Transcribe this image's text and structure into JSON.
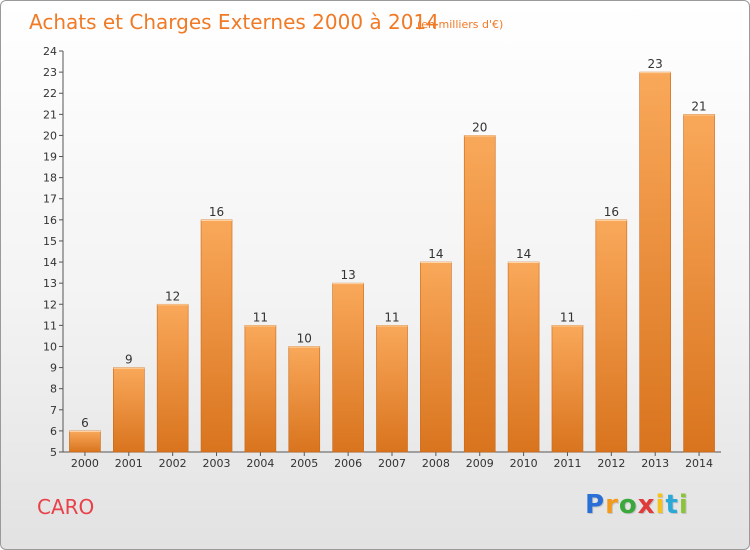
{
  "chart_data": {
    "type": "bar",
    "title": "Achats et Charges Externes 2000 à 2014",
    "subtitle": "(en milliers d'€)",
    "categories": [
      "2000",
      "2001",
      "2002",
      "2003",
      "2004",
      "2005",
      "2006",
      "2007",
      "2008",
      "2009",
      "2010",
      "2011",
      "2012",
      "2013",
      "2014"
    ],
    "values": [
      6,
      9,
      12,
      16,
      11,
      10,
      13,
      11,
      14,
      20,
      14,
      11,
      16,
      23,
      21
    ],
    "ylim": [
      5,
      24
    ],
    "yticks": [
      5,
      6,
      7,
      8,
      9,
      10,
      11,
      12,
      13,
      14,
      15,
      16,
      17,
      18,
      19,
      20,
      21,
      22,
      23,
      24
    ],
    "grid": false,
    "legend": "none",
    "bar_color_top": "#f9a85a",
    "bar_color_bottom": "#d9741e"
  },
  "commune": "CARO",
  "logo": {
    "letters": [
      "P",
      "r",
      "o",
      "x",
      "i",
      "t",
      "i"
    ],
    "colors": [
      "#2a6fd6",
      "#f39a1c",
      "#3aa83a",
      "#e03a3a",
      "#f3c21c",
      "#2aa8d6",
      "#8bc43a"
    ]
  }
}
